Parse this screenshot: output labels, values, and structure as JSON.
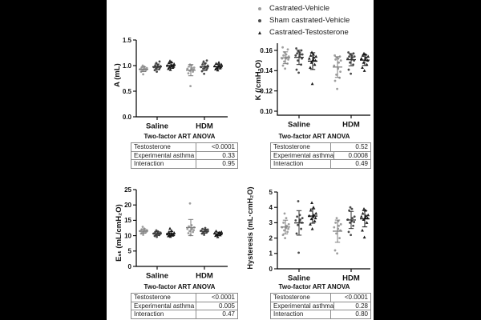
{
  "legend": {
    "items": [
      {
        "label": "Castrated-Vehicle",
        "marker": "circle",
        "color": "#9e9e9e"
      },
      {
        "label": "Sham castrated-Vehicle",
        "marker": "circle",
        "color": "#4a4a4a"
      },
      {
        "label": "Castrated-Testosterone",
        "marker": "triangle",
        "color": "#1c1c1c"
      }
    ]
  },
  "chart_data": [
    {
      "type": "scatter",
      "ylabel": "A (mL)",
      "ylim": [
        0,
        1.5
      ],
      "yticks": [
        {
          "v": 0,
          "t": "0.0"
        },
        {
          "v": 0.5,
          "t": "0.5"
        },
        {
          "v": 1.0,
          "t": "1.0"
        },
        {
          "v": 1.5,
          "t": "1.5"
        }
      ],
      "groups": [
        "Saline",
        "HDM"
      ],
      "series": [
        "Castrated-Vehicle",
        "Sham castrated-Vehicle",
        "Castrated-Testosterone"
      ],
      "colors": [
        "#9e9e9e",
        "#4a4a4a",
        "#1c1c1c"
      ],
      "points": [
        [
          [
            0.83,
            0.88,
            0.9,
            0.91,
            0.92,
            0.93,
            0.93,
            0.94,
            0.95,
            0.96,
            0.98,
            1.0
          ],
          [
            0.88,
            0.91,
            0.93,
            0.95,
            0.96,
            0.97,
            0.97,
            0.98,
            0.99,
            1.0,
            1.02,
            1.05,
            1.08
          ],
          [
            0.92,
            0.94,
            0.96,
            0.97,
            0.98,
            0.99,
            1.0,
            1.01,
            1.03,
            1.05,
            1.07,
            1.09
          ]
        ],
        [
          [
            0.6,
            0.85,
            0.88,
            0.9,
            0.92,
            0.93,
            0.94,
            0.95,
            0.96,
            0.98,
            1.0,
            1.02
          ],
          [
            0.84,
            0.89,
            0.92,
            0.94,
            0.95,
            0.96,
            0.97,
            0.98,
            1.0,
            1.02,
            1.04,
            1.08,
            1.1
          ],
          [
            0.91,
            0.93,
            0.95,
            0.96,
            0.97,
            0.98,
            0.99,
            1.0,
            1.02,
            1.04,
            1.06
          ]
        ]
      ],
      "error": "mean_sd",
      "anova": {
        "title": "Two-factor ART ANOVA",
        "rows": [
          [
            "Testosterone",
            "<0.0001"
          ],
          [
            "Experimental asthma",
            "0.33"
          ],
          [
            "Interaction",
            "0.95"
          ]
        ]
      }
    },
    {
      "type": "scatter",
      "ylabel": "K (/cmH₂O)",
      "ylim": [
        0.1,
        0.17
      ],
      "yticks": [
        {
          "v": 0.1,
          "t": "0.10"
        },
        {
          "v": 0.12,
          "t": "0.12"
        },
        {
          "v": 0.14,
          "t": "0.14"
        },
        {
          "v": 0.16,
          "t": "0.16"
        }
      ],
      "groups": [
        "Saline",
        "HDM"
      ],
      "series": [
        "Castrated-Vehicle",
        "Sham castrated-Vehicle",
        "Castrated-Testosterone"
      ],
      "colors": [
        "#9e9e9e",
        "#4a4a4a",
        "#1c1c1c"
      ],
      "points": [
        [
          [
            0.142,
            0.145,
            0.147,
            0.149,
            0.151,
            0.152,
            0.152,
            0.153,
            0.154,
            0.155,
            0.156,
            0.158,
            0.161,
            0.163
          ],
          [
            0.138,
            0.141,
            0.146,
            0.15,
            0.152,
            0.154,
            0.155,
            0.156,
            0.156,
            0.157,
            0.158,
            0.159,
            0.16,
            0.162
          ],
          [
            0.127,
            0.143,
            0.146,
            0.148,
            0.15,
            0.151,
            0.152,
            0.153,
            0.154,
            0.155,
            0.156,
            0.158
          ]
        ],
        [
          [
            0.122,
            0.13,
            0.133,
            0.136,
            0.139,
            0.142,
            0.145,
            0.148,
            0.15,
            0.151,
            0.152,
            0.153,
            0.154,
            0.155
          ],
          [
            0.137,
            0.141,
            0.146,
            0.148,
            0.15,
            0.151,
            0.152,
            0.153,
            0.154,
            0.154,
            0.155,
            0.156,
            0.157,
            0.158
          ],
          [
            0.14,
            0.143,
            0.146,
            0.148,
            0.15,
            0.151,
            0.152,
            0.153,
            0.154,
            0.155,
            0.156,
            0.157
          ]
        ]
      ],
      "error": "mean_sd",
      "anova": {
        "title": "Two-factor ART ANOVA",
        "rows": [
          [
            "Testosterone",
            "0.52"
          ],
          [
            "Experimental asthma",
            "0.0008"
          ],
          [
            "Interaction",
            "0.49"
          ]
        ]
      }
    },
    {
      "type": "scatter",
      "ylabel": "Eₛₜ (mL/cmH₂O)",
      "ylim": [
        0,
        25
      ],
      "yticks": [
        {
          "v": 0,
          "t": "0"
        },
        {
          "v": 5,
          "t": "5"
        },
        {
          "v": 10,
          "t": "10"
        },
        {
          "v": 15,
          "t": "15"
        },
        {
          "v": 20,
          "t": "20"
        },
        {
          "v": 25,
          "t": "25"
        }
      ],
      "groups": [
        "Saline",
        "HDM"
      ],
      "series": [
        "Castrated-Vehicle",
        "Sham castrated-Vehicle",
        "Castrated-Testosterone"
      ],
      "colors": [
        "#9e9e9e",
        "#4a4a4a",
        "#1c1c1c"
      ],
      "points": [
        [
          [
            10.3,
            10.7,
            11.0,
            11.2,
            11.3,
            11.4,
            11.5,
            11.6,
            11.8,
            12.0,
            12.3,
            12.9
          ],
          [
            9.6,
            9.9,
            10.2,
            10.4,
            10.5,
            10.6,
            10.7,
            10.8,
            11.0,
            11.2,
            11.4,
            11.7
          ],
          [
            9.7,
            9.9,
            10.1,
            10.2,
            10.3,
            10.4,
            10.5,
            10.7,
            10.9,
            11.1,
            11.6,
            12.3
          ]
        ],
        [
          [
            10.2,
            10.8,
            11.2,
            11.5,
            11.8,
            12.0,
            12.2,
            12.4,
            12.7,
            13.0,
            13.4,
            20.5
          ],
          [
            10.3,
            10.7,
            11.0,
            11.2,
            11.3,
            11.5,
            11.6,
            11.8,
            12.0,
            12.2,
            12.5
          ],
          [
            9.6,
            10.0,
            10.2,
            10.4,
            10.5,
            10.6,
            10.8,
            11.0,
            11.2,
            11.5
          ]
        ]
      ],
      "error": "mean_sd",
      "anova": {
        "title": "Two-factor ART ANOVA",
        "rows": [
          [
            "Testosterone",
            "<0.0001"
          ],
          [
            "Experimental asthma",
            "0.005"
          ],
          [
            "Interaction",
            "0.47"
          ]
        ]
      }
    },
    {
      "type": "scatter",
      "ylabel": "Hysteresis (mL·cmH₂O)",
      "ylim": [
        0,
        5
      ],
      "yticks": [
        {
          "v": 0,
          "t": "0"
        },
        {
          "v": 1,
          "t": "1"
        },
        {
          "v": 2,
          "t": "2"
        },
        {
          "v": 3,
          "t": "3"
        },
        {
          "v": 4,
          "t": "4"
        },
        {
          "v": 5,
          "t": "5"
        }
      ],
      "groups": [
        "Saline",
        "HDM"
      ],
      "series": [
        "Castrated-Vehicle",
        "Sham castrated-Vehicle",
        "Castrated-Testosterone"
      ],
      "colors": [
        "#9e9e9e",
        "#4a4a4a",
        "#1c1c1c"
      ],
      "points": [
        [
          [
            2.0,
            2.2,
            2.4,
            2.5,
            2.6,
            2.65,
            2.7,
            2.8,
            2.9,
            3.0,
            3.3,
            3.6
          ],
          [
            1.05,
            2.3,
            2.6,
            2.85,
            3.0,
            3.1,
            3.15,
            3.2,
            3.3,
            3.4,
            3.5,
            4.4
          ],
          [
            2.6,
            2.9,
            3.1,
            3.25,
            3.3,
            3.4,
            3.45,
            3.5,
            3.6,
            3.8,
            4.0,
            4.3
          ]
        ],
        [
          [
            1.0,
            1.2,
            2.0,
            2.3,
            2.5,
            2.6,
            2.7,
            2.8,
            2.9,
            3.0,
            3.1,
            3.3
          ],
          [
            2.2,
            2.4,
            2.8,
            3.0,
            3.05,
            3.1,
            3.2,
            3.3,
            3.4,
            3.8,
            3.9,
            4.0
          ],
          [
            2.05,
            2.5,
            3.0,
            3.2,
            3.3,
            3.35,
            3.4,
            3.45,
            3.5,
            3.6,
            3.8,
            3.9
          ]
        ]
      ],
      "error": "mean_sd",
      "anova": {
        "title": "Two-factor ART ANOVA",
        "rows": [
          [
            "Testosterone",
            "<0.0001"
          ],
          [
            "Experimental asthma",
            "0.28"
          ],
          [
            "Interaction",
            "0.80"
          ]
        ]
      }
    }
  ]
}
